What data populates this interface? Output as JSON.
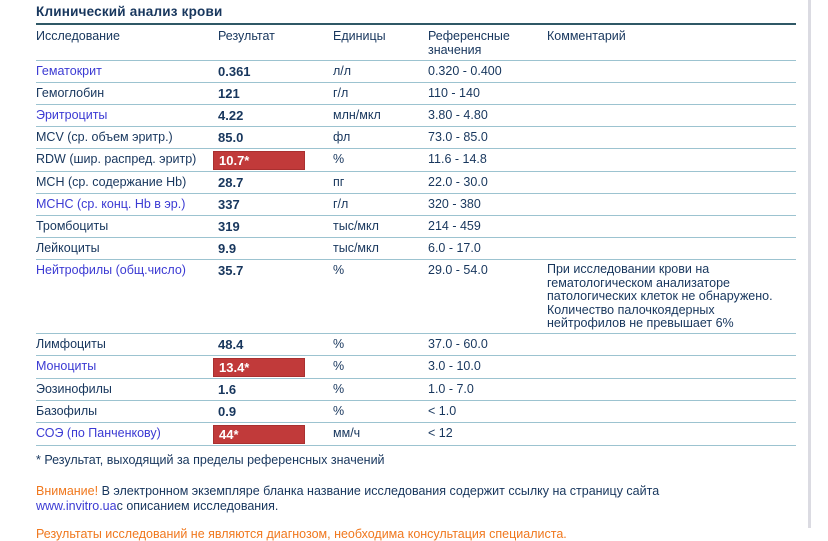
{
  "title": "Клинический анализ крови",
  "table": {
    "columns": [
      "Исследование",
      "Результат",
      "Единицы",
      "Референсные значения",
      "Комментарий"
    ],
    "rows": [
      {
        "name": "Гематокрит",
        "link": true,
        "flag": false,
        "result": "0.361",
        "units": "л/л",
        "ref": "0.320 - 0.400",
        "comment": ""
      },
      {
        "name": "Гемоглобин",
        "link": false,
        "flag": false,
        "result": "121",
        "units": "г/л",
        "ref": "110 - 140",
        "comment": ""
      },
      {
        "name": "Эритроциты",
        "link": true,
        "flag": false,
        "result": "4.22",
        "units": "млн/мкл",
        "ref": "3.80 - 4.80",
        "comment": ""
      },
      {
        "name": "MCV (ср. объем эритр.)",
        "link": false,
        "flag": false,
        "result": "85.0",
        "units": "фл",
        "ref": "73.0 - 85.0",
        "comment": ""
      },
      {
        "name": "RDW (шир. распред. эритр)",
        "link": false,
        "flag": true,
        "result": "10.7*",
        "units": "%",
        "ref": "11.6 - 14.8",
        "comment": ""
      },
      {
        "name": "MCH (ср. содержание Hb)",
        "link": false,
        "flag": false,
        "result": "28.7",
        "units": "пг",
        "ref": "22.0 - 30.0",
        "comment": ""
      },
      {
        "name": "MCHC (ср. конц. Hb в эр.)",
        "link": true,
        "flag": false,
        "result": "337",
        "units": "г/л",
        "ref": "320 - 380",
        "comment": ""
      },
      {
        "name": "Тромбоциты",
        "link": false,
        "flag": false,
        "result": "319",
        "units": "тыс/мкл",
        "ref": "214 - 459",
        "comment": ""
      },
      {
        "name": "Лейкоциты",
        "link": false,
        "flag": false,
        "result": "9.9",
        "units": "тыс/мкл",
        "ref": "6.0 - 17.0",
        "comment": ""
      },
      {
        "name": "Нейтрофилы (общ.число)",
        "link": true,
        "flag": false,
        "result": "35.7",
        "units": "%",
        "ref": "29.0 - 54.0",
        "comment": "При исследовании крови на гематологическом анализаторе патологических клеток не обнаружено. Количество палочкоядерных нейтрофилов не превышает 6%"
      },
      {
        "name": "Лимфоциты",
        "link": false,
        "flag": false,
        "result": "48.4",
        "units": "%",
        "ref": "37.0 - 60.0",
        "comment": ""
      },
      {
        "name": "Моноциты",
        "link": true,
        "flag": true,
        "result": "13.4*",
        "units": "%",
        "ref": "3.0 - 10.0",
        "comment": ""
      },
      {
        "name": "Эозинофилы",
        "link": false,
        "flag": false,
        "result": "1.6",
        "units": "%",
        "ref": "1.0 - 7.0",
        "comment": ""
      },
      {
        "name": "Базофилы",
        "link": false,
        "flag": false,
        "result": "0.9",
        "units": "%",
        "ref": "< 1.0",
        "comment": ""
      },
      {
        "name": "СОЭ (по Панченкову)",
        "link": true,
        "flag": true,
        "result": "44*",
        "units": "мм/ч",
        "ref": "< 12",
        "comment": ""
      }
    ]
  },
  "footnote": "* Результат, выходящий за пределы референсных значений",
  "attention": {
    "label": "Внимание!",
    "line1": "В электронном экземпляре бланка название исследования содержит ссылку на страницу сайта",
    "link": "www.invitro.ua",
    "line2": "с описанием исследования."
  },
  "disclaimer": "Результаты исследований не являются диагнозом, необходима консультация специалиста.",
  "colors": {
    "text_dark": "#17365D",
    "header_teal": "#45778C",
    "row_line": "#9CC3D0",
    "title_rule": "#2F5866",
    "link_blue": "#3B3AD3",
    "flag_red": "#C13A3A",
    "flag_text": "#FFFFFF",
    "orange": "#F0781E"
  }
}
